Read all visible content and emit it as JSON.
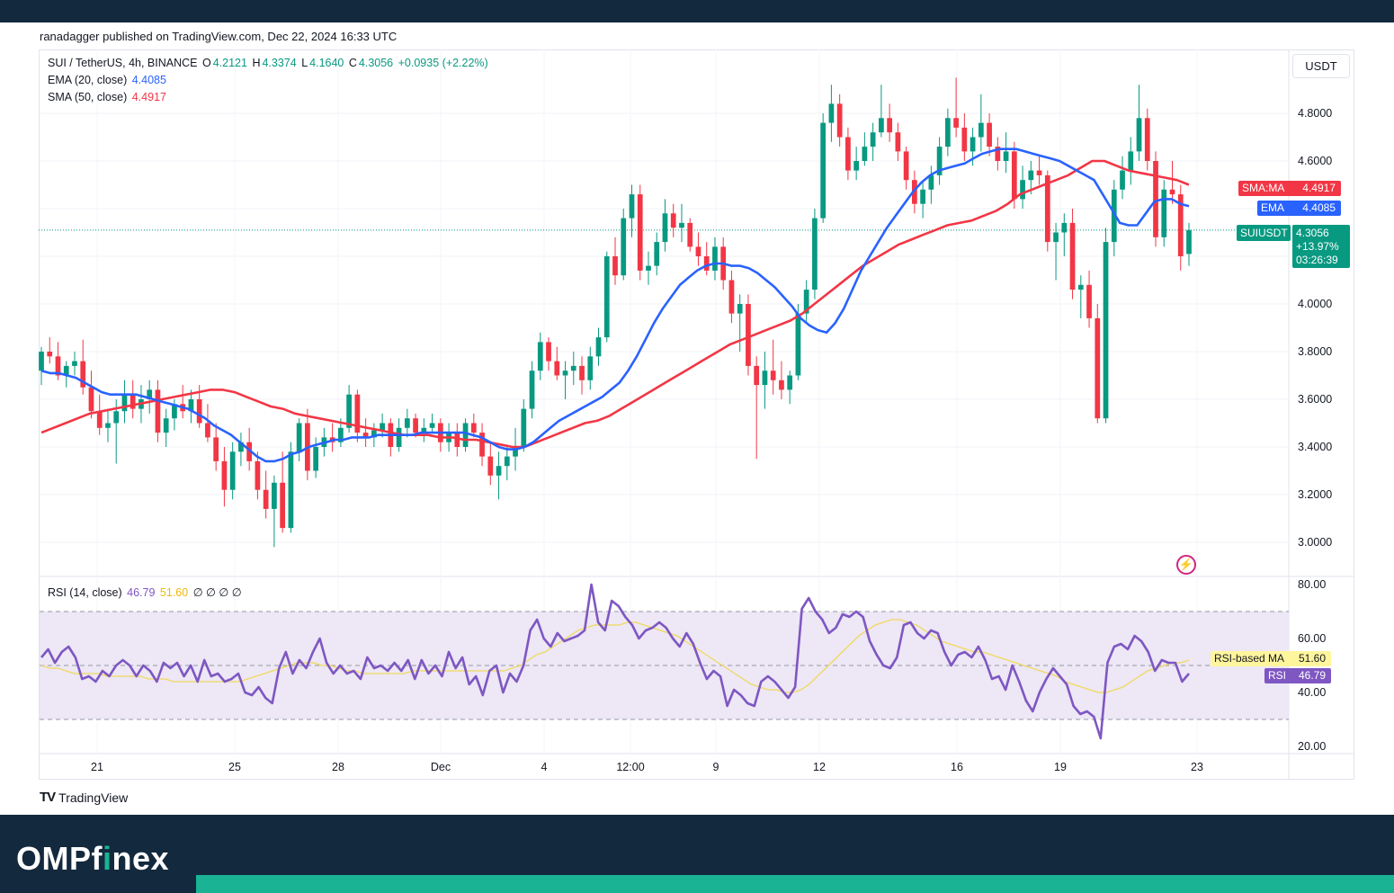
{
  "header": {
    "published": "ranadagger published on TradingView.com, Dec 22, 2024 16:33 UTC"
  },
  "legend": {
    "symbol": "SUI / TetherUS, 4h, BINANCE",
    "open_label": "O",
    "open": "4.2121",
    "high_label": "H",
    "high": "4.3374",
    "low_label": "L",
    "low": "4.1640",
    "close_label": "C",
    "close": "4.3056",
    "change": "+0.0935 (+2.22%)",
    "ema_label": "EMA (20, close)",
    "ema_value": "4.4085",
    "sma_label": "SMA (50, close)",
    "sma_value": "4.4917",
    "rsi_label": "RSI (14, close)",
    "rsi_value": "46.79",
    "rsi_ma_value": "51.60",
    "rsi_extra": "∅ ∅ ∅ ∅"
  },
  "currency_button": "USDT",
  "price_tags": {
    "sma_name": "SMA:MA",
    "sma": "4.4917",
    "ema_name": "EMA",
    "ema": "4.4085",
    "symbol_name": "SUIUSDT",
    "price": "4.3056",
    "change": "+13.97%",
    "countdown": "03:26:39"
  },
  "rsi_tags": {
    "ma_name": "RSI-based MA",
    "ma": "51.60",
    "rsi_name": "RSI",
    "rsi": "46.79"
  },
  "colors": {
    "up": "#089981",
    "down": "#f23645",
    "ema": "#2962ff",
    "sma": "#f23645",
    "rsi": "#7e57c2",
    "rsi_ma": "#f0d95c",
    "rsi_band": "#ede7f6"
  },
  "footer": {
    "brand_pre": "OMPf",
    "brand_i": "i",
    "brand_post": "nex",
    "tv_logo": "TradingView"
  },
  "chart_data": {
    "type": "candlestick",
    "title": "SUI / TetherUS, 4h, BINANCE",
    "price_axis": {
      "min": 2.9,
      "max": 5.0,
      "ticks": [
        "3.0000",
        "3.2000",
        "3.4000",
        "3.6000",
        "3.8000",
        "4.0000",
        "4.2000",
        "4.4000",
        "4.6000",
        "4.8000"
      ]
    },
    "time_axis": {
      "labels": [
        "21",
        "25",
        "28",
        "Dec",
        "4",
        "12:00",
        "9",
        "12",
        "16",
        "19",
        "23"
      ]
    },
    "rsi_axis": {
      "min": 15,
      "max": 85,
      "ticks": [
        "20.00",
        "40.00",
        "60.00",
        "80.00"
      ],
      "band": [
        30,
        70
      ],
      "mid": 50
    },
    "candles": [
      [
        3.72,
        3.82,
        3.66,
        3.8
      ],
      [
        3.8,
        3.86,
        3.75,
        3.78
      ],
      [
        3.78,
        3.84,
        3.68,
        3.7
      ],
      [
        3.7,
        3.76,
        3.65,
        3.74
      ],
      [
        3.74,
        3.8,
        3.7,
        3.76
      ],
      [
        3.76,
        3.85,
        3.62,
        3.65
      ],
      [
        3.65,
        3.72,
        3.52,
        3.55
      ],
      [
        3.55,
        3.62,
        3.45,
        3.48
      ],
      [
        3.48,
        3.56,
        3.42,
        3.5
      ],
      [
        3.5,
        3.6,
        3.33,
        3.55
      ],
      [
        3.55,
        3.68,
        3.5,
        3.62
      ],
      [
        3.62,
        3.68,
        3.52,
        3.56
      ],
      [
        3.56,
        3.66,
        3.5,
        3.6
      ],
      [
        3.6,
        3.68,
        3.54,
        3.64
      ],
      [
        3.64,
        3.68,
        3.42,
        3.46
      ],
      [
        3.46,
        3.56,
        3.4,
        3.52
      ],
      [
        3.52,
        3.6,
        3.47,
        3.58
      ],
      [
        3.58,
        3.66,
        3.52,
        3.55
      ],
      [
        3.55,
        3.64,
        3.5,
        3.6
      ],
      [
        3.6,
        3.66,
        3.48,
        3.5
      ],
      [
        3.5,
        3.58,
        3.42,
        3.44
      ],
      [
        3.44,
        3.5,
        3.3,
        3.34
      ],
      [
        3.34,
        3.4,
        3.15,
        3.22
      ],
      [
        3.22,
        3.42,
        3.18,
        3.38
      ],
      [
        3.38,
        3.46,
        3.32,
        3.42
      ],
      [
        3.42,
        3.48,
        3.3,
        3.34
      ],
      [
        3.34,
        3.38,
        3.18,
        3.22
      ],
      [
        3.22,
        3.3,
        3.1,
        3.14
      ],
      [
        3.14,
        3.28,
        2.98,
        3.25
      ],
      [
        3.25,
        3.38,
        3.04,
        3.06
      ],
      [
        3.06,
        3.42,
        3.04,
        3.38
      ],
      [
        3.38,
        3.52,
        3.34,
        3.5
      ],
      [
        3.5,
        3.56,
        3.26,
        3.3
      ],
      [
        3.3,
        3.44,
        3.27,
        3.4
      ],
      [
        3.4,
        3.48,
        3.36,
        3.44
      ],
      [
        3.44,
        3.5,
        3.38,
        3.42
      ],
      [
        3.42,
        3.52,
        3.4,
        3.48
      ],
      [
        3.48,
        3.66,
        3.46,
        3.62
      ],
      [
        3.62,
        3.64,
        3.42,
        3.46
      ],
      [
        3.46,
        3.52,
        3.4,
        3.44
      ],
      [
        3.44,
        3.5,
        3.4,
        3.47
      ],
      [
        3.47,
        3.54,
        3.44,
        3.5
      ],
      [
        3.5,
        3.52,
        3.36,
        3.4
      ],
      [
        3.4,
        3.52,
        3.38,
        3.48
      ],
      [
        3.48,
        3.56,
        3.44,
        3.52
      ],
      [
        3.52,
        3.54,
        3.44,
        3.46
      ],
      [
        3.46,
        3.52,
        3.42,
        3.48
      ],
      [
        3.48,
        3.54,
        3.46,
        3.5
      ],
      [
        3.5,
        3.52,
        3.38,
        3.42
      ],
      [
        3.42,
        3.5,
        3.38,
        3.46
      ],
      [
        3.46,
        3.5,
        3.36,
        3.4
      ],
      [
        3.4,
        3.52,
        3.38,
        3.5
      ],
      [
        3.5,
        3.54,
        3.44,
        3.46
      ],
      [
        3.46,
        3.5,
        3.32,
        3.36
      ],
      [
        3.36,
        3.42,
        3.24,
        3.28
      ],
      [
        3.28,
        3.38,
        3.18,
        3.32
      ],
      [
        3.32,
        3.4,
        3.26,
        3.36
      ],
      [
        3.36,
        3.48,
        3.3,
        3.4
      ],
      [
        3.4,
        3.6,
        3.38,
        3.56
      ],
      [
        3.56,
        3.76,
        3.52,
        3.72
      ],
      [
        3.72,
        3.88,
        3.68,
        3.84
      ],
      [
        3.84,
        3.86,
        3.72,
        3.76
      ],
      [
        3.76,
        3.82,
        3.68,
        3.7
      ],
      [
        3.7,
        3.76,
        3.6,
        3.72
      ],
      [
        3.72,
        3.8,
        3.66,
        3.74
      ],
      [
        3.74,
        3.78,
        3.62,
        3.68
      ],
      [
        3.68,
        3.82,
        3.64,
        3.78
      ],
      [
        3.78,
        3.9,
        3.74,
        3.86
      ],
      [
        3.86,
        4.22,
        3.84,
        4.2
      ],
      [
        4.2,
        4.28,
        4.08,
        4.12
      ],
      [
        4.12,
        4.4,
        4.1,
        4.36
      ],
      [
        4.36,
        4.5,
        4.28,
        4.46
      ],
      [
        4.46,
        4.5,
        4.1,
        4.14
      ],
      [
        4.14,
        4.22,
        4.08,
        4.16
      ],
      [
        4.16,
        4.3,
        4.12,
        4.26
      ],
      [
        4.26,
        4.44,
        4.22,
        4.38
      ],
      [
        4.38,
        4.42,
        4.28,
        4.32
      ],
      [
        4.32,
        4.42,
        4.26,
        4.34
      ],
      [
        4.34,
        4.36,
        4.22,
        4.24
      ],
      [
        4.24,
        4.3,
        4.16,
        4.2
      ],
      [
        4.2,
        4.26,
        4.12,
        4.14
      ],
      [
        4.14,
        4.28,
        4.1,
        4.24
      ],
      [
        4.24,
        4.28,
        4.06,
        4.1
      ],
      [
        4.1,
        4.14,
        3.92,
        3.96
      ],
      [
        3.96,
        4.04,
        3.8,
        4.0
      ],
      [
        4.0,
        4.04,
        3.7,
        3.74
      ],
      [
        3.74,
        3.78,
        3.35,
        3.66
      ],
      [
        3.66,
        3.8,
        3.56,
        3.72
      ],
      [
        3.72,
        3.85,
        3.62,
        3.68
      ],
      [
        3.68,
        3.76,
        3.6,
        3.64
      ],
      [
        3.64,
        3.72,
        3.58,
        3.7
      ],
      [
        3.7,
        4.0,
        3.68,
        3.96
      ],
      [
        3.96,
        4.1,
        3.92,
        4.06
      ],
      [
        4.06,
        4.4,
        4.02,
        4.36
      ],
      [
        4.36,
        4.8,
        4.34,
        4.76
      ],
      [
        4.76,
        4.92,
        4.68,
        4.84
      ],
      [
        4.84,
        4.88,
        4.66,
        4.7
      ],
      [
        4.7,
        4.74,
        4.52,
        4.56
      ],
      [
        4.56,
        4.66,
        4.52,
        4.6
      ],
      [
        4.6,
        4.72,
        4.58,
        4.66
      ],
      [
        4.66,
        4.76,
        4.6,
        4.72
      ],
      [
        4.72,
        4.92,
        4.7,
        4.78
      ],
      [
        4.78,
        4.84,
        4.68,
        4.72
      ],
      [
        4.72,
        4.76,
        4.6,
        4.64
      ],
      [
        4.64,
        4.66,
        4.48,
        4.52
      ],
      [
        4.52,
        4.56,
        4.38,
        4.42
      ],
      [
        4.42,
        4.52,
        4.36,
        4.48
      ],
      [
        4.48,
        4.58,
        4.42,
        4.54
      ],
      [
        4.54,
        4.7,
        4.5,
        4.66
      ],
      [
        4.66,
        4.82,
        4.62,
        4.78
      ],
      [
        4.78,
        4.95,
        4.7,
        4.74
      ],
      [
        4.74,
        4.8,
        4.6,
        4.64
      ],
      [
        4.64,
        4.74,
        4.58,
        4.7
      ],
      [
        4.7,
        4.88,
        4.64,
        4.76
      ],
      [
        4.76,
        4.8,
        4.62,
        4.66
      ],
      [
        4.66,
        4.7,
        4.56,
        4.6
      ],
      [
        4.6,
        4.72,
        4.55,
        4.64
      ],
      [
        4.64,
        4.68,
        4.4,
        4.44
      ],
      [
        4.44,
        4.58,
        4.4,
        4.52
      ],
      [
        4.52,
        4.6,
        4.46,
        4.56
      ],
      [
        4.56,
        4.62,
        4.5,
        4.54
      ],
      [
        4.54,
        4.56,
        4.22,
        4.26
      ],
      [
        4.26,
        4.34,
        4.1,
        4.3
      ],
      [
        4.3,
        4.38,
        4.2,
        4.34
      ],
      [
        4.34,
        4.4,
        4.02,
        4.06
      ],
      [
        4.06,
        4.12,
        3.94,
        4.08
      ],
      [
        4.08,
        4.14,
        3.9,
        3.94
      ],
      [
        3.94,
        4.0,
        3.5,
        3.52
      ],
      [
        3.52,
        4.32,
        3.5,
        4.26
      ],
      [
        4.26,
        4.52,
        4.2,
        4.48
      ],
      [
        4.48,
        4.62,
        4.44,
        4.56
      ],
      [
        4.56,
        4.7,
        4.5,
        4.64
      ],
      [
        4.64,
        4.92,
        4.6,
        4.78
      ],
      [
        4.78,
        4.82,
        4.56,
        4.6
      ],
      [
        4.6,
        4.64,
        4.24,
        4.28
      ],
      [
        4.28,
        4.52,
        4.24,
        4.48
      ],
      [
        4.48,
        4.6,
        4.42,
        4.46
      ],
      [
        4.46,
        4.5,
        4.14,
        4.2
      ],
      [
        4.21,
        4.34,
        4.16,
        4.31
      ]
    ],
    "ema20": [
      3.72,
      3.71,
      3.71,
      3.7,
      3.69,
      3.67,
      3.65,
      3.63,
      3.62,
      3.62,
      3.62,
      3.62,
      3.61,
      3.6,
      3.59,
      3.58,
      3.57,
      3.56,
      3.54,
      3.52,
      3.49,
      3.47,
      3.45,
      3.42,
      3.39,
      3.36,
      3.34,
      3.34,
      3.35,
      3.37,
      3.38,
      3.4,
      3.41,
      3.42,
      3.43,
      3.43,
      3.44,
      3.44,
      3.44,
      3.45,
      3.45,
      3.45,
      3.45,
      3.45,
      3.46,
      3.46,
      3.46,
      3.46,
      3.46,
      3.46,
      3.45,
      3.44,
      3.42,
      3.4,
      3.39,
      3.39,
      3.4,
      3.42,
      3.45,
      3.48,
      3.51,
      3.53,
      3.55,
      3.57,
      3.59,
      3.61,
      3.64,
      3.67,
      3.72,
      3.78,
      3.85,
      3.92,
      3.98,
      4.03,
      4.08,
      4.11,
      4.14,
      4.16,
      4.17,
      4.17,
      4.16,
      4.16,
      4.15,
      4.13,
      4.1,
      4.07,
      4.03,
      3.99,
      3.94,
      3.91,
      3.89,
      3.88,
      3.92,
      3.98,
      4.06,
      4.14,
      4.2,
      4.26,
      4.32,
      4.37,
      4.42,
      4.47,
      4.51,
      4.54,
      4.56,
      4.57,
      4.58,
      4.59,
      4.61,
      4.63,
      4.64,
      4.65,
      4.65,
      4.65,
      4.64,
      4.63,
      4.62,
      4.61,
      4.6,
      4.58,
      4.56,
      4.54,
      4.52,
      4.46,
      4.4,
      4.34,
      4.33,
      4.33,
      4.38,
      4.43,
      4.44,
      4.44,
      4.42,
      4.41
    ],
    "sma50": [
      3.46,
      3.48,
      3.5,
      3.52,
      3.54,
      3.55,
      3.56,
      3.57,
      3.58,
      3.59,
      3.6,
      3.61,
      3.62,
      3.63,
      3.64,
      3.64,
      3.63,
      3.61,
      3.59,
      3.57,
      3.56,
      3.54,
      3.53,
      3.52,
      3.51,
      3.5,
      3.49,
      3.48,
      3.47,
      3.46,
      3.45,
      3.45,
      3.45,
      3.44,
      3.44,
      3.43,
      3.43,
      3.42,
      3.41,
      3.4,
      3.4,
      3.42,
      3.44,
      3.46,
      3.48,
      3.5,
      3.51,
      3.53,
      3.56,
      3.59,
      3.62,
      3.65,
      3.68,
      3.71,
      3.74,
      3.77,
      3.8,
      3.83,
      3.85,
      3.87,
      3.89,
      3.91,
      3.93,
      3.96,
      4.0,
      4.04,
      4.08,
      4.12,
      4.16,
      4.19,
      4.22,
      4.25,
      4.27,
      4.29,
      4.31,
      4.33,
      4.34,
      4.35,
      4.37,
      4.39,
      4.42,
      4.46,
      4.48,
      4.5,
      4.52,
      4.54,
      4.57,
      4.6,
      4.6,
      4.58,
      4.56,
      4.55,
      4.54,
      4.53,
      4.52,
      4.5
    ],
    "rsi": [
      53,
      56,
      51,
      55,
      57,
      53,
      45,
      46,
      44,
      48,
      46,
      50,
      52,
      50,
      46,
      50,
      48,
      44,
      51,
      49,
      51,
      46,
      50,
      44,
      52,
      46,
      47,
      44,
      45,
      47,
      40,
      39,
      42,
      38,
      36,
      49,
      55,
      47,
      52,
      49,
      55,
      60,
      51,
      47,
      50,
      47,
      48,
      45,
      53,
      49,
      50,
      48,
      51,
      48,
      52,
      45,
      52,
      47,
      50,
      46,
      55,
      49,
      53,
      43,
      46,
      39,
      48,
      50,
      40,
      47,
      44,
      50,
      63,
      67,
      60,
      57,
      62,
      59,
      60,
      61,
      63,
      80,
      66,
      63,
      74,
      72,
      68,
      65,
      60,
      63,
      64,
      66,
      64,
      60,
      57,
      62,
      58,
      51,
      45,
      48,
      46,
      35,
      41,
      39,
      36,
      35,
      44,
      46,
      44,
      41,
      38,
      42,
      71,
      75,
      70,
      67,
      62,
      64,
      69,
      68,
      70,
      68,
      59,
      54,
      50,
      49,
      53,
      65,
      66,
      62,
      60,
      63,
      62,
      55,
      50,
      54,
      55,
      53,
      57,
      52,
      45,
      46,
      41,
      50,
      44,
      37,
      33,
      40,
      45,
      49,
      46,
      43,
      35,
      32,
      33,
      31,
      23,
      51,
      57,
      58,
      56,
      61,
      59,
      55,
      48,
      52,
      51,
      51,
      44,
      47
    ],
    "rsi_ma": [
      50,
      49,
      49,
      48,
      47,
      47,
      47,
      47,
      46,
      46,
      46,
      46,
      46,
      45,
      45,
      45,
      44,
      44,
      44,
      44,
      44,
      44,
      44,
      44,
      44,
      45,
      46,
      47,
      48,
      49,
      50,
      51,
      51,
      51,
      50,
      50,
      49,
      48,
      48,
      47,
      47,
      47,
      47,
      47,
      47,
      48,
      48,
      48,
      48,
      48,
      48,
      48,
      48,
      48,
      48,
      48,
      48,
      49,
      50,
      52,
      54,
      55,
      57,
      59,
      61,
      63,
      64,
      65,
      65,
      65,
      65,
      66,
      66,
      65,
      64,
      63,
      62,
      61,
      59,
      57,
      55,
      53,
      51,
      49,
      47,
      45,
      43,
      42,
      41,
      41,
      40,
      40,
      41,
      43,
      46,
      49,
      52,
      55,
      58,
      61,
      63,
      65,
      66,
      67,
      67,
      66,
      65,
      63,
      61,
      59,
      58,
      57,
      56,
      55,
      55,
      54,
      53,
      52,
      51,
      50,
      49,
      48,
      47,
      46,
      44,
      43,
      42,
      41,
      40,
      40,
      41,
      42,
      44,
      46,
      48,
      49,
      50,
      51,
      51,
      52
    ]
  }
}
